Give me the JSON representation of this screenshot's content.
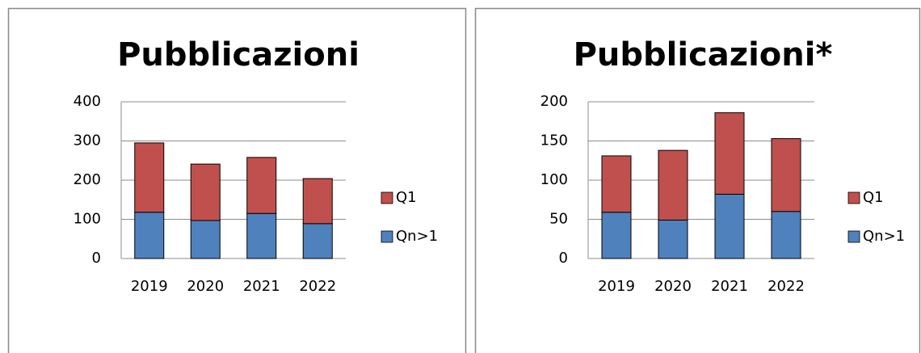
{
  "chart_data": [
    {
      "type": "bar",
      "stacked": true,
      "title": "Pubblicazioni",
      "categories": [
        "2019",
        "2020",
        "2021",
        "2022"
      ],
      "series": [
        {
          "name": "Qn>1",
          "color": "#4f81bd",
          "values": [
            118,
            97,
            115,
            89
          ]
        },
        {
          "name": "Q1",
          "color": "#c0504d",
          "values": [
            177,
            144,
            143,
            115
          ]
        }
      ],
      "ylim": [
        0,
        400
      ],
      "yticks": [
        0,
        100,
        200,
        300,
        400
      ],
      "grid": true,
      "legend": "right"
    },
    {
      "type": "bar",
      "stacked": true,
      "title": "Pubblicazioni*",
      "categories": [
        "2019",
        "2020",
        "2021",
        "2022"
      ],
      "series": [
        {
          "name": "Qn>1",
          "color": "#4f81bd",
          "values": [
            59,
            49,
            82,
            60
          ]
        },
        {
          "name": "Q1",
          "color": "#c0504d",
          "values": [
            72,
            89,
            104,
            93
          ]
        }
      ],
      "ylim": [
        0,
        200
      ],
      "yticks": [
        0,
        50,
        100,
        150,
        200
      ],
      "grid": true,
      "legend": "right"
    }
  ]
}
